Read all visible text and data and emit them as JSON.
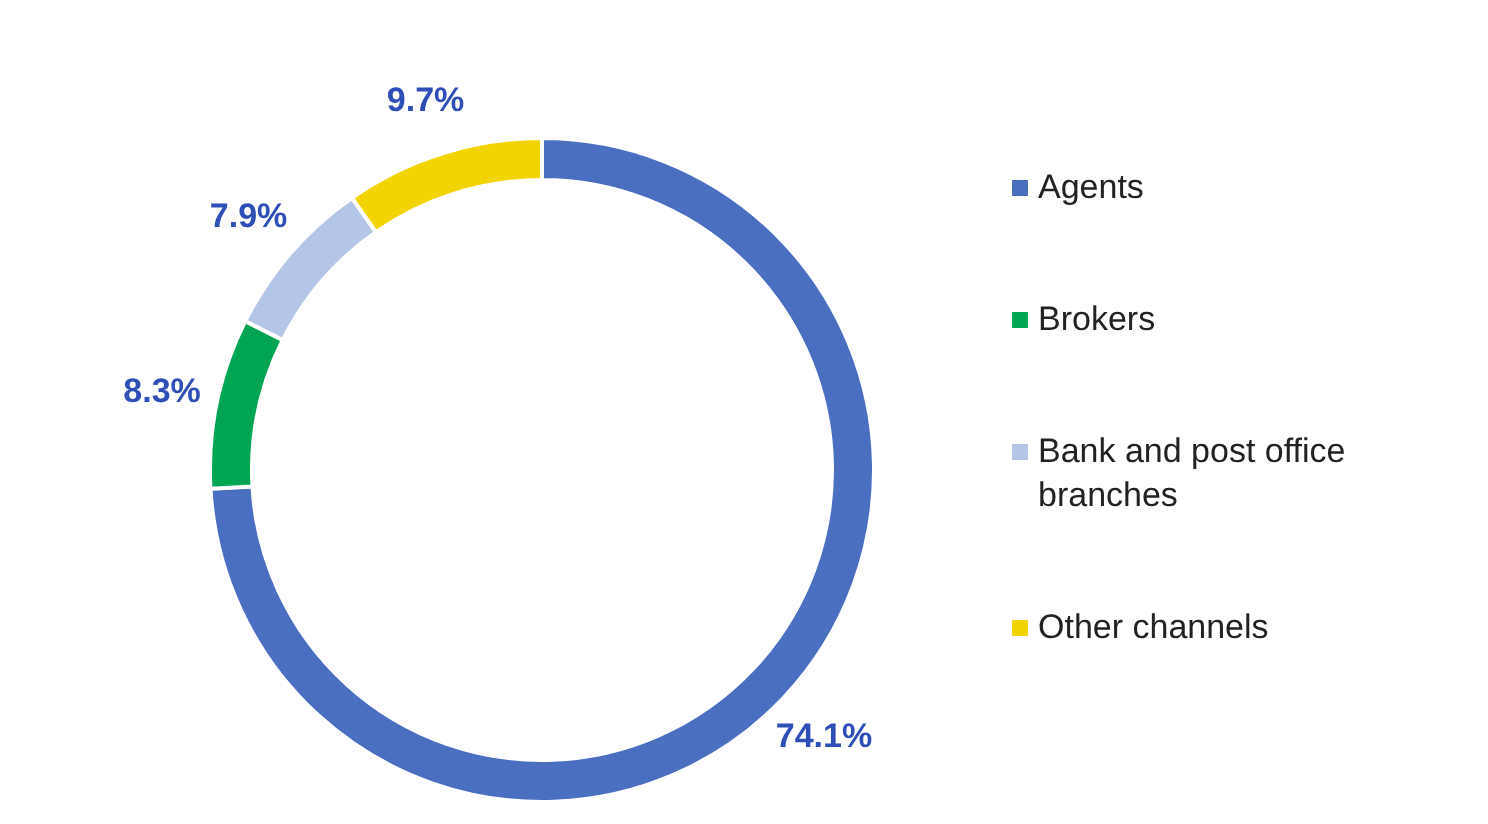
{
  "chart_data": {
    "type": "donut",
    "categories": [
      "Agents",
      "Brokers",
      "Bank and post office branches",
      "Other channels"
    ],
    "values": [
      74.1,
      8.3,
      7.9,
      9.7
    ],
    "colors": [
      "#4a6fc1",
      "#00a551",
      "#b4c6e7",
      "#f2d500"
    ],
    "value_labels": [
      "74.1%",
      "8.3%",
      "7.9%",
      "9.7%"
    ],
    "legend": "right"
  }
}
